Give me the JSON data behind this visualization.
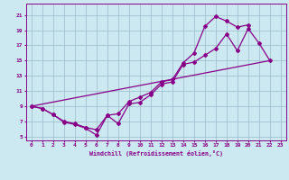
{
  "title": "",
  "xlabel": "Windchill (Refroidissement éolien,°C)",
  "ylabel": "",
  "bg_color": "#cce8f0",
  "grid_color": "#99bbcc",
  "line_color": "#880088",
  "xlim": [
    -0.5,
    23.5
  ],
  "ylim": [
    4.5,
    22.5
  ],
  "xticks": [
    0,
    1,
    2,
    3,
    4,
    5,
    6,
    7,
    8,
    9,
    10,
    11,
    12,
    13,
    14,
    15,
    16,
    17,
    18,
    19,
    20,
    21,
    22,
    23
  ],
  "yticks": [
    5,
    7,
    9,
    11,
    13,
    15,
    17,
    19,
    21
  ],
  "line1_x": [
    0,
    1,
    2,
    3,
    4,
    5,
    6,
    7,
    8,
    9,
    10,
    11,
    12,
    13,
    14,
    15,
    16,
    17,
    18,
    19,
    20,
    21,
    22
  ],
  "line1_y": [
    9.0,
    8.7,
    7.9,
    6.9,
    6.6,
    6.1,
    5.2,
    7.8,
    6.7,
    9.3,
    9.5,
    10.5,
    11.9,
    12.2,
    14.5,
    14.8,
    15.7,
    16.6,
    18.5,
    16.3,
    19.2,
    17.3,
    15.0
  ],
  "line2_x": [
    0,
    1,
    2,
    3,
    4,
    5,
    6,
    7,
    8,
    9,
    10,
    11,
    12,
    13,
    14,
    15,
    16,
    17,
    18,
    19,
    20
  ],
  "line2_y": [
    9.0,
    8.7,
    7.9,
    7.0,
    6.7,
    6.2,
    5.9,
    7.8,
    8.0,
    9.6,
    10.2,
    10.8,
    12.2,
    12.5,
    14.7,
    16.0,
    19.5,
    20.8,
    20.2,
    19.4,
    19.7
  ],
  "line3_x": [
    0,
    22
  ],
  "line3_y": [
    9.0,
    15.0
  ],
  "marker": "D",
  "markersize": 2.0,
  "linewidth": 0.9
}
